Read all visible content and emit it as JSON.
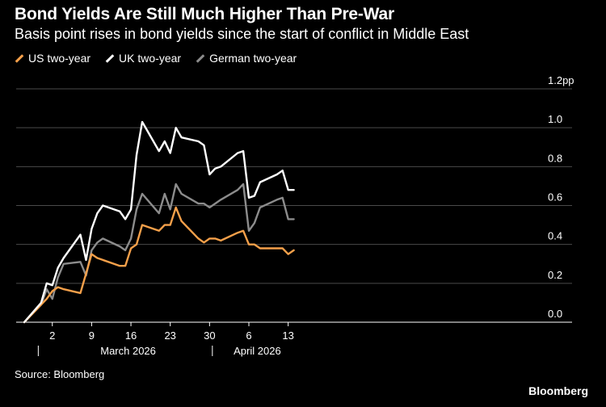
{
  "header": {
    "title": "Bond Yields Are Still Much Higher Than Pre-War",
    "subtitle": "Basis point rises in bond yields since the start of conflict in Middle East"
  },
  "legend": [
    {
      "label": "US two-year",
      "color": "#f5a04a"
    },
    {
      "label": "UK two-year",
      "color": "#ffffff"
    },
    {
      "label": "German two-year",
      "color": "#8c8c8c"
    }
  ],
  "footer": {
    "source": "Source: Bloomberg",
    "brand": "Bloomberg"
  },
  "chart_data": {
    "type": "line",
    "title": "Bond Yields Are Still Much Higher Than Pre-War",
    "ylabel": "pp",
    "ylim": [
      0,
      1.2
    ],
    "yticks": [
      0.0,
      0.2,
      0.4,
      0.6,
      0.8,
      1.0,
      1.2
    ],
    "ytick_labels": [
      "0.0",
      "0.2",
      "0.4",
      "0.6",
      "0.8",
      "1.0",
      "1.2pp"
    ],
    "xlim": [
      0,
      47
    ],
    "xticks": [
      {
        "x": 5,
        "label": "2"
      },
      {
        "x": 12,
        "label": "9"
      },
      {
        "x": 19,
        "label": "16"
      },
      {
        "x": 26,
        "label": "23"
      },
      {
        "x": 33,
        "label": "30"
      },
      {
        "x": 40,
        "label": "6"
      },
      {
        "x": 47,
        "label": "13"
      }
    ],
    "month_labels": [
      {
        "x": 18.5,
        "label": "March 2026"
      },
      {
        "x": 41.5,
        "label": "April 2026"
      }
    ],
    "month_separators": [
      2.5,
      33.5
    ],
    "series": [
      {
        "name": "US two-year",
        "color": "#f5a04a",
        "x": [
          0,
          3,
          4,
          5,
          6,
          7,
          10,
          11,
          12,
          13,
          14,
          17,
          18,
          19,
          20,
          21,
          24,
          25,
          26,
          27,
          28,
          31,
          32,
          33,
          34,
          35,
          38,
          39,
          40,
          41,
          42,
          45,
          46,
          47,
          48
        ],
        "values": [
          0.0,
          0.09,
          0.12,
          0.16,
          0.18,
          0.17,
          0.15,
          0.25,
          0.35,
          0.33,
          0.32,
          0.29,
          0.29,
          0.38,
          0.4,
          0.5,
          0.47,
          0.5,
          0.5,
          0.59,
          0.52,
          0.43,
          0.41,
          0.43,
          0.43,
          0.42,
          0.46,
          0.47,
          0.4,
          0.4,
          0.38,
          0.38,
          0.38,
          0.35,
          0.37
        ]
      },
      {
        "name": "UK two-year",
        "color": "#ffffff",
        "x": [
          0,
          3,
          4,
          5,
          6,
          7,
          10,
          11,
          12,
          13,
          14,
          17,
          18,
          19,
          20,
          21,
          24,
          25,
          26,
          27,
          28,
          31,
          32,
          33,
          34,
          35,
          38,
          39,
          40,
          41,
          42,
          45,
          46,
          47,
          48
        ],
        "values": [
          0.0,
          0.1,
          0.2,
          0.19,
          0.28,
          0.33,
          0.45,
          0.32,
          0.48,
          0.56,
          0.6,
          0.57,
          0.53,
          0.58,
          0.86,
          1.03,
          0.88,
          0.93,
          0.87,
          1.0,
          0.95,
          0.93,
          0.91,
          0.76,
          0.79,
          0.8,
          0.87,
          0.88,
          0.64,
          0.65,
          0.72,
          0.76,
          0.78,
          0.68,
          0.68
        ]
      },
      {
        "name": "German two-year",
        "color": "#8c8c8c",
        "x": [
          0,
          3,
          4,
          5,
          6,
          7,
          10,
          11,
          12,
          13,
          14,
          17,
          18,
          19,
          20,
          21,
          24,
          25,
          26,
          27,
          28,
          31,
          32,
          33,
          34,
          35,
          38,
          39,
          40,
          41,
          42,
          45,
          46,
          47,
          48
        ],
        "values": [
          0.0,
          0.09,
          0.17,
          0.12,
          0.23,
          0.3,
          0.31,
          0.24,
          0.37,
          0.41,
          0.43,
          0.39,
          0.37,
          0.43,
          0.58,
          0.66,
          0.56,
          0.66,
          0.58,
          0.71,
          0.66,
          0.61,
          0.61,
          0.59,
          0.61,
          0.63,
          0.68,
          0.71,
          0.47,
          0.51,
          0.59,
          0.63,
          0.64,
          0.53,
          0.53
        ]
      }
    ]
  }
}
